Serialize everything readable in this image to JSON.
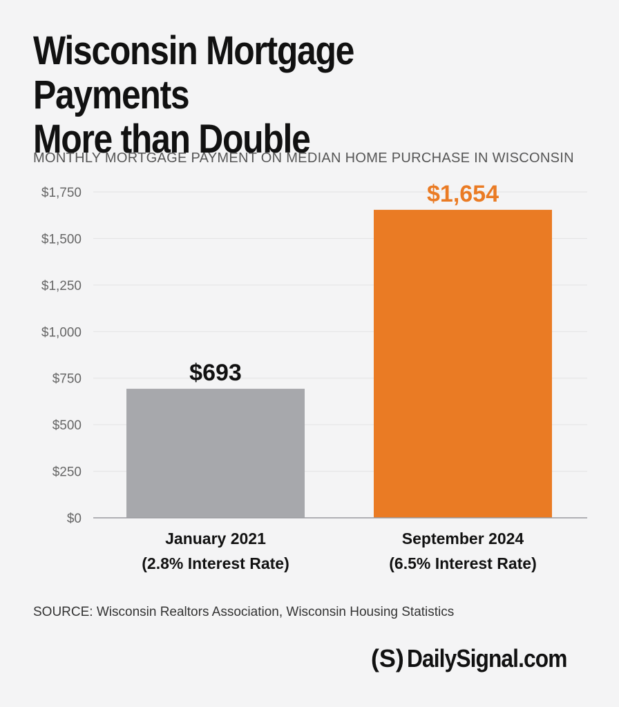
{
  "title_line1": "Wisconsin Mortgage Payments",
  "title_line2": "More than Double",
  "subtitle": "MONTHLY MORTGAGE PAYMENT ON MEDIAN HOME PURCHASE IN WISCONSIN",
  "source": "SOURCE: Wisconsin Realtors Association, Wisconsin Housing Statistics",
  "brand": {
    "mark": "(S)",
    "name": "DailySignal.com"
  },
  "colors": {
    "bar_1": "#a7a8ac",
    "bar_2": "#ea7b24",
    "label_1": "#111111",
    "label_2": "#ea7b24",
    "grid": "#e2e2e4",
    "axis": "#9a9a9e"
  },
  "chart_data": {
    "type": "bar",
    "title": "Wisconsin Mortgage Payments More than Double",
    "subtitle": "MONTHLY MORTGAGE PAYMENT ON MEDIAN HOME PURCHASE IN WISCONSIN",
    "categories": [
      [
        "January 2021",
        "(2.8% Interest Rate)"
      ],
      [
        "September 2024",
        "(6.5% Interest Rate)"
      ]
    ],
    "values": [
      693,
      1654
    ],
    "data_labels": [
      "$693",
      "$1,654"
    ],
    "ylim": [
      0,
      1750
    ],
    "yticks": [
      0,
      250,
      500,
      750,
      1000,
      1250,
      1500,
      1750
    ],
    "ytick_labels": [
      "$0",
      "$250",
      "$500",
      "$750",
      "$1,000",
      "$1,250",
      "$1,500",
      "$1,750"
    ],
    "grid": true
  }
}
